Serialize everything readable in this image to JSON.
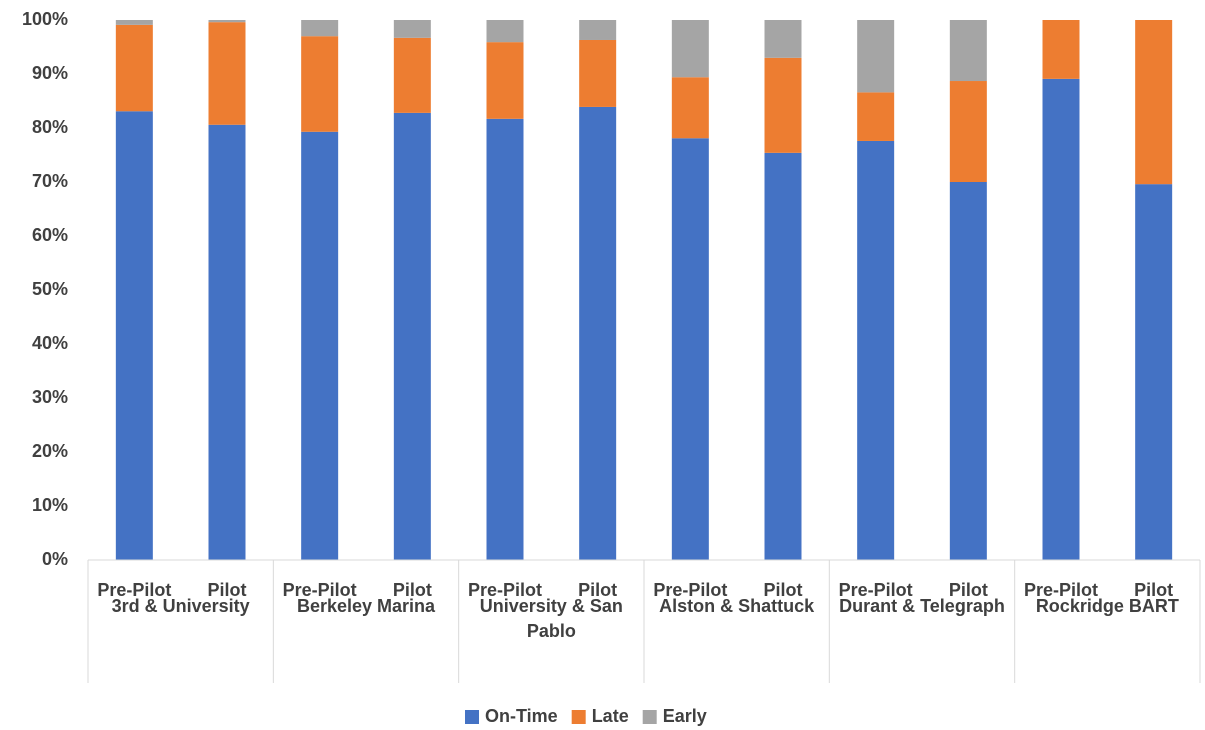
{
  "chart_data": {
    "type": "stacked_bar",
    "categories": [
      "Pre-Pilot",
      "Pilot",
      "Pre-Pilot",
      "Pilot",
      "Pre-Pilot",
      "Pilot",
      "Pre-Pilot",
      "Pilot",
      "Pre-Pilot",
      "Pilot",
      "Pre-Pilot",
      "Pilot"
    ],
    "groups": [
      "3rd & University",
      "Berkeley Marina",
      "University & San Pablo",
      "Alston & Shattuck",
      "Durant & Telegraph",
      "Rockridge BART"
    ],
    "series": [
      {
        "name": "On-Time",
        "color": "#4472c4",
        "values": [
          83.1,
          80.6,
          79.3,
          82.8,
          81.7,
          83.9,
          78.1,
          75.4,
          77.6,
          70.0,
          89.1,
          69.6
        ]
      },
      {
        "name": "Late",
        "color": "#ed7d31",
        "values": [
          16.0,
          19.0,
          17.7,
          13.9,
          14.2,
          12.4,
          11.3,
          17.6,
          9.0,
          18.7,
          10.9,
          30.4
        ]
      },
      {
        "name": "Early",
        "color": "#a5a5a5",
        "values": [
          0.9,
          0.4,
          3.0,
          3.3,
          4.1,
          3.7,
          10.6,
          7.0,
          13.4,
          11.3,
          0,
          0
        ]
      }
    ],
    "ylim": [
      0,
      100
    ],
    "yticks": [
      {
        "value": 0,
        "label": "0%"
      },
      {
        "value": 10,
        "label": "10%"
      },
      {
        "value": 20,
        "label": "20%"
      },
      {
        "value": 30,
        "label": "30%"
      },
      {
        "value": 40,
        "label": "40%"
      },
      {
        "value": 50,
        "label": "50%"
      },
      {
        "value": 60,
        "label": "60%"
      },
      {
        "value": 70,
        "label": "70%"
      },
      {
        "value": 80,
        "label": "80%"
      },
      {
        "value": 90,
        "label": "90%"
      },
      {
        "value": 100,
        "label": "100%"
      }
    ],
    "grid": false,
    "legend": "bottom"
  }
}
